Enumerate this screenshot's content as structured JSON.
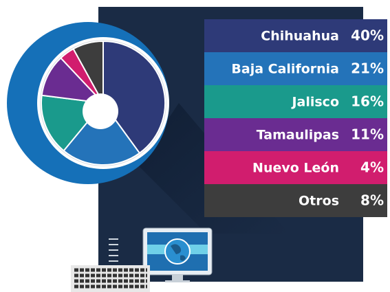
{
  "chart_data": {
    "type": "pie",
    "categories": [
      "Chihuahua",
      "Baja California",
      "Jalisco",
      "Tamaulipas",
      "Nuevo León",
      "Otros"
    ],
    "values": [
      40,
      21,
      16,
      11,
      4,
      8
    ],
    "value_labels": [
      "40%",
      "21%",
      "16%",
      "11%",
      "4%",
      "8%"
    ],
    "colors": [
      "#2e3a78",
      "#2473b9",
      "#1a9a8c",
      "#6a2c91",
      "#d11d6e",
      "#3d3d3d"
    ]
  }
}
